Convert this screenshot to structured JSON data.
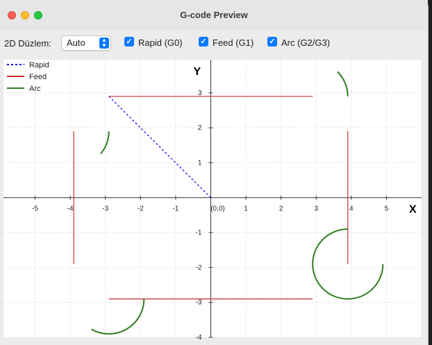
{
  "window": {
    "title": "G-code Preview"
  },
  "toolbar": {
    "plane_label": "2D Düzlem:",
    "plane_value": "Auto",
    "checkboxes": [
      {
        "label": "Rapid (G0)",
        "checked": true
      },
      {
        "label": "Feed (G1)",
        "checked": true
      },
      {
        "label": "Arc (G2/G3)",
        "checked": true
      }
    ]
  },
  "colors": {
    "rapid": "#0000ff",
    "feed": "#cc2a2a",
    "arc": "#2e7d1e",
    "accent": "#0a7aff"
  },
  "chart_data": {
    "type": "line",
    "xlabel": "X",
    "ylabel": "Y",
    "xlim": [
      -5.9,
      6.0
    ],
    "ylim": [
      -4.0,
      3.95
    ],
    "x_ticks": [
      "-5",
      "-4",
      "-3",
      "-2",
      "-1",
      "(0,0)",
      "1",
      "2",
      "3",
      "4",
      "5"
    ],
    "y_ticks": [
      "3",
      "2",
      "1",
      "-1",
      "-2",
      "-3",
      "-4"
    ],
    "grid": true,
    "legend_position": "top-left",
    "legend": [
      "Rapid",
      "Feed",
      "Arc"
    ],
    "series": [
      {
        "name": "Rapid",
        "kind": "rapid",
        "points": [
          [
            0,
            0
          ],
          [
            -2.9,
            2.9
          ]
        ]
      },
      {
        "name": "Feed",
        "kind": "feed",
        "points": [
          [
            -2.9,
            2.9
          ],
          [
            2.9,
            2.9
          ]
        ]
      },
      {
        "name": "Feed",
        "kind": "feed",
        "points": [
          [
            3.9,
            1.9
          ],
          [
            3.9,
            -1.9
          ]
        ]
      },
      {
        "name": "Feed",
        "kind": "feed",
        "points": [
          [
            2.9,
            -2.9
          ],
          [
            -2.9,
            -2.9
          ]
        ]
      },
      {
        "name": "Feed",
        "kind": "feed",
        "points": [
          [
            -3.9,
            -1.9
          ],
          [
            -3.9,
            1.9
          ]
        ]
      },
      {
        "name": "Arc",
        "kind": "arc",
        "center": [
          2.9,
          2.9
        ],
        "radius": 1.0,
        "start_deg": 0,
        "end_deg": 45,
        "clockwise": false
      },
      {
        "name": "Arc",
        "kind": "arc",
        "center": [
          3.9,
          -1.9
        ],
        "radius": 1.0,
        "start_deg": 90,
        "end_deg": 0,
        "clockwise": false
      },
      {
        "name": "Arc",
        "kind": "arc",
        "center": [
          -2.9,
          -2.9
        ],
        "radius": 1.0,
        "start_deg": 0,
        "end_deg": 240,
        "clockwise": true
      },
      {
        "name": "Arc",
        "kind": "arc",
        "center": [
          -3.9,
          1.9
        ],
        "radius": 1.0,
        "start_deg": 0,
        "end_deg": -40,
        "clockwise": true
      }
    ]
  }
}
